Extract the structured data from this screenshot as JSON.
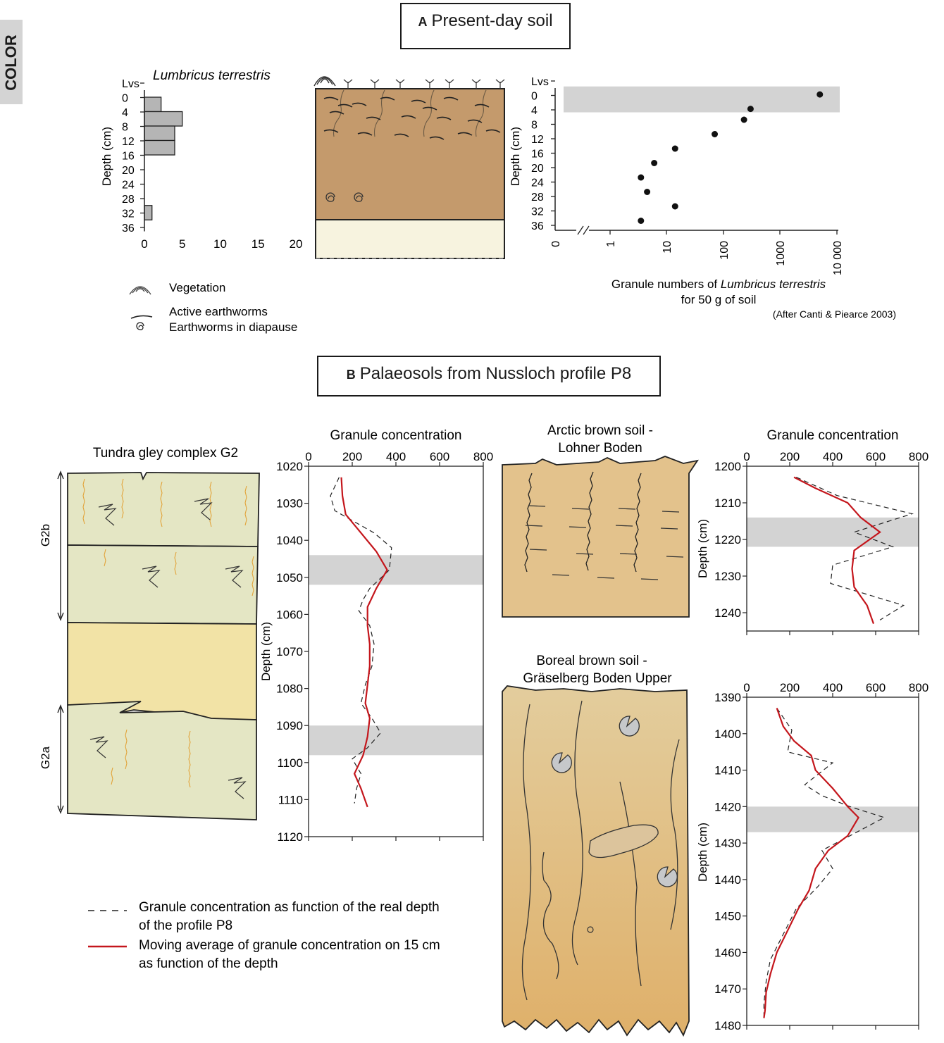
{
  "color_tag": "COLOR",
  "panelA": {
    "letter": "A",
    "title": "Present-day soil",
    "species": "Lumbricus terrestris",
    "legend": {
      "vegetation": "Vegetation",
      "active": "Active earthworms",
      "diapause": "Earthworms in diapause"
    },
    "xlabel_prefix": "Granule numbers of ",
    "xlabel_species": "Lumbricus terrestris",
    "xlabel_line2": "for 50 g of soil",
    "credit": "(After Canti & Piearce 2003)"
  },
  "panelB": {
    "letter": "B",
    "title": "Palaeosols from Nussloch profile P8",
    "tundra_title": "Tundra gley complex G2",
    "g2b": "G2b",
    "g2a": "G2a",
    "arctic_title_1": "Arctic brown soil -",
    "arctic_title_2": "Lohner Boden",
    "boreal_title_1": "Boreal brown soil -",
    "boreal_title_2": "Gräselberg Boden Upper",
    "legend_dashed_1": "Granule concentration as function of the real depth",
    "legend_dashed_2": "of the profile P8",
    "legend_red_1": "Moving average of granule concentration on 15 cm",
    "legend_red_2": "as function of the depth"
  },
  "chart_data": [
    {
      "type": "bar",
      "orientation": "horizontal",
      "ylabel": "Depth (cm)",
      "yticks": [
        "Lvs",
        "0",
        "4",
        "8",
        "12",
        "16",
        "20",
        "24",
        "28",
        "32",
        "36"
      ],
      "xticks": [
        0,
        5,
        10,
        15,
        20
      ],
      "xlim": [
        0,
        20
      ],
      "bars": [
        {
          "from": 0,
          "to": 4,
          "value": 2.2
        },
        {
          "from": 4,
          "to": 8,
          "value": 5
        },
        {
          "from": 8,
          "to": 12,
          "value": 4
        },
        {
          "from": 12,
          "to": 16,
          "value": 4
        },
        {
          "from": 30,
          "to": 34,
          "value": 1
        }
      ]
    },
    {
      "type": "scatter",
      "xscale": "log",
      "ylabel": "Depth (cm)",
      "yticks": [
        "Lvs",
        "0",
        "4",
        "8",
        "12",
        "16",
        "20",
        "24",
        "28",
        "32",
        "36"
      ],
      "xticks": [
        "0",
        "1",
        "10",
        "100",
        "1000",
        "10 000"
      ],
      "shaded_band": [
        -2,
        4
      ],
      "points": [
        {
          "x": 5000,
          "y": 1
        },
        {
          "x": 300,
          "y": 5
        },
        {
          "x": 230,
          "y": 8
        },
        {
          "x": 70,
          "y": 12
        },
        {
          "x": 14,
          "y": 16
        },
        {
          "x": 6,
          "y": 20
        },
        {
          "x": 3.5,
          "y": 24
        },
        {
          "x": 4.5,
          "y": 28
        },
        {
          "x": 14,
          "y": 32
        },
        {
          "x": 3.5,
          "y": 36
        }
      ]
    },
    {
      "type": "line",
      "title": "Granule concentration",
      "ylabel": "Depth (cm)",
      "xlim": [
        0,
        800
      ],
      "ylim": [
        1020,
        1120
      ],
      "xticks": [
        0,
        200,
        400,
        600,
        800
      ],
      "yticks": [
        1020,
        1030,
        1040,
        1050,
        1060,
        1070,
        1080,
        1090,
        1100,
        1110,
        1120
      ],
      "bands": [
        [
          1044,
          1052
        ],
        [
          1090,
          1098
        ]
      ],
      "series": [
        {
          "style": "dashed",
          "points": [
            [
              140,
              1023
            ],
            [
              100,
              1028
            ],
            [
              120,
              1032
            ],
            [
              210,
              1035
            ],
            [
              300,
              1038
            ],
            [
              380,
              1042
            ],
            [
              370,
              1048
            ],
            [
              280,
              1053
            ],
            [
              250,
              1056
            ],
            [
              230,
              1059
            ],
            [
              280,
              1063
            ],
            [
              300,
              1068
            ],
            [
              290,
              1074
            ],
            [
              260,
              1079
            ],
            [
              240,
              1084
            ],
            [
              290,
              1088
            ],
            [
              330,
              1092
            ],
            [
              270,
              1096
            ],
            [
              200,
              1099
            ],
            [
              240,
              1103
            ],
            [
              220,
              1107
            ],
            [
              210,
              1111
            ]
          ]
        },
        {
          "style": "solid",
          "points": [
            [
              150,
              1023
            ],
            [
              155,
              1028
            ],
            [
              170,
              1033
            ],
            [
              240,
              1038
            ],
            [
              310,
              1043
            ],
            [
              360,
              1048
            ],
            [
              310,
              1053
            ],
            [
              270,
              1058
            ],
            [
              270,
              1063
            ],
            [
              280,
              1068
            ],
            [
              280,
              1074
            ],
            [
              270,
              1079
            ],
            [
              260,
              1084
            ],
            [
              280,
              1088
            ],
            [
              270,
              1093
            ],
            [
              250,
              1098
            ],
            [
              210,
              1103
            ],
            [
              240,
              1107
            ],
            [
              270,
              1112
            ]
          ]
        }
      ]
    },
    {
      "type": "line",
      "title": "Granule concentration",
      "ylabel": "Depth (cm)",
      "xlim": [
        0,
        800
      ],
      "ylim": [
        1200,
        1245
      ],
      "xticks": [
        0,
        200,
        400,
        600,
        800
      ],
      "yticks": [
        1200,
        1210,
        1220,
        1230,
        1240
      ],
      "bands": [
        [
          1214,
          1222
        ]
      ],
      "series": [
        {
          "style": "dashed",
          "points": [
            [
              230,
              1203
            ],
            [
              420,
              1208
            ],
            [
              770,
              1213
            ],
            [
              500,
              1218
            ],
            [
              680,
              1222
            ],
            [
              400,
              1227
            ],
            [
              390,
              1232
            ],
            [
              730,
              1238
            ],
            [
              620,
              1242
            ]
          ]
        },
        {
          "style": "solid",
          "points": [
            [
              220,
              1203
            ],
            [
              320,
              1206
            ],
            [
              470,
              1210
            ],
            [
              530,
              1214
            ],
            [
              620,
              1218
            ],
            [
              500,
              1223
            ],
            [
              490,
              1228
            ],
            [
              500,
              1233
            ],
            [
              560,
              1238
            ],
            [
              590,
              1243
            ]
          ]
        }
      ]
    },
    {
      "type": "line",
      "ylabel": "Depth (cm)",
      "xlim": [
        0,
        800
      ],
      "ylim": [
        1390,
        1480
      ],
      "xticks": [
        0,
        200,
        400,
        600,
        800
      ],
      "yticks": [
        1390,
        1400,
        1410,
        1420,
        1430,
        1440,
        1450,
        1460,
        1470,
        1480
      ],
      "bands": [
        [
          1420,
          1427
        ]
      ],
      "series": [
        {
          "style": "dashed",
          "points": [
            [
              140,
              1393
            ],
            [
              210,
              1399
            ],
            [
              190,
              1405
            ],
            [
              400,
              1408
            ],
            [
              270,
              1414
            ],
            [
              350,
              1417
            ],
            [
              480,
              1420
            ],
            [
              640,
              1423
            ],
            [
              480,
              1428
            ],
            [
              350,
              1432
            ],
            [
              400,
              1437
            ],
            [
              330,
              1442
            ],
            [
              230,
              1448
            ],
            [
              170,
              1455
            ],
            [
              110,
              1462
            ],
            [
              90,
              1468
            ],
            [
              80,
              1474
            ],
            [
              80,
              1478
            ]
          ]
        },
        {
          "style": "solid",
          "points": [
            [
              140,
              1393
            ],
            [
              170,
              1398
            ],
            [
              220,
              1402
            ],
            [
              300,
              1406
            ],
            [
              320,
              1410
            ],
            [
              400,
              1415
            ],
            [
              470,
              1420
            ],
            [
              520,
              1423
            ],
            [
              470,
              1428
            ],
            [
              380,
              1432
            ],
            [
              320,
              1437
            ],
            [
              290,
              1443
            ],
            [
              240,
              1448
            ],
            [
              190,
              1454
            ],
            [
              140,
              1460
            ],
            [
              110,
              1466
            ],
            [
              90,
              1471
            ],
            [
              85,
              1476
            ],
            [
              80,
              1478
            ]
          ]
        }
      ]
    }
  ]
}
